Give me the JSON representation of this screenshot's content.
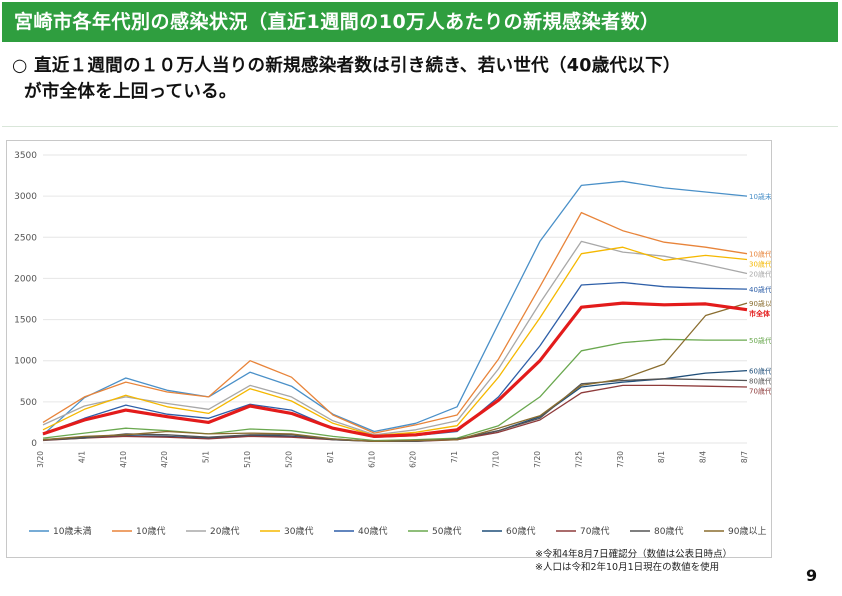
{
  "header": {
    "title": "宮崎市各年代別の感染状況（直近1週間の10万人あたりの新規感染者数）"
  },
  "summary": {
    "line1": "○ 直近１週間の１０万人当りの新規感染者数は引き続き、若い世代（40歳代以下）",
    "line2": "が市全体を上回っている。"
  },
  "notes": {
    "line1": "※令和4年8月7日確認分（数値は公表日時点）",
    "line2": "※人口は令和2年10月1日現在の数値を使用"
  },
  "page_number": "9",
  "chart_data": {
    "type": "line",
    "title": "",
    "xlabel": "",
    "ylabel": "",
    "ylim": [
      0,
      3500
    ],
    "yticks": [
      0,
      500,
      1000,
      1500,
      2000,
      2500,
      3000,
      3500
    ],
    "grid": true,
    "legend_position": "bottom",
    "x": [
      "3/20",
      "4/1",
      "4/10",
      "4/20",
      "5/1",
      "5/10",
      "5/20",
      "6/1",
      "6/10",
      "6/20",
      "7/1",
      "7/10",
      "7/20",
      "7/25",
      "7/30",
      "8/1",
      "8/4",
      "8/7"
    ],
    "series": [
      {
        "name": "10歳未満",
        "color": "#4a90c8",
        "end_label": "10歳未満",
        "values": [
          100,
          550,
          790,
          640,
          560,
          860,
          690,
          350,
          140,
          240,
          440,
          1450,
          2450,
          3130,
          3180,
          3100,
          3050,
          3000
        ]
      },
      {
        "name": "10歳代",
        "color": "#e8843a",
        "end_label": "10歳代",
        "values": [
          250,
          560,
          740,
          620,
          560,
          1000,
          800,
          340,
          120,
          220,
          340,
          1020,
          1900,
          2800,
          2580,
          2440,
          2380,
          2300
        ]
      },
      {
        "name": "20歳代",
        "color": "#a8a8a8",
        "end_label": "20歳代",
        "values": [
          220,
          450,
          560,
          480,
          410,
          700,
          560,
          270,
          100,
          160,
          270,
          900,
          1700,
          2450,
          2320,
          2270,
          2170,
          2060
        ]
      },
      {
        "name": "30歳代",
        "color": "#f5b800",
        "end_label": "30歳代",
        "values": [
          160,
          410,
          580,
          440,
          360,
          660,
          510,
          240,
          90,
          130,
          210,
          800,
          1520,
          2300,
          2380,
          2220,
          2280,
          2230
        ]
      },
      {
        "name": "40歳代",
        "color": "#2e5fa8",
        "end_label": "40歳代",
        "values": [
          110,
          300,
          460,
          350,
          300,
          470,
          400,
          180,
          70,
          90,
          140,
          560,
          1180,
          1920,
          1950,
          1900,
          1880,
          1870
        ]
      },
      {
        "name": "50歳代",
        "color": "#6aa84f",
        "end_label": "50歳代",
        "values": [
          60,
          120,
          180,
          150,
          110,
          170,
          150,
          80,
          30,
          40,
          60,
          210,
          560,
          1120,
          1220,
          1260,
          1250,
          1250
        ]
      },
      {
        "name": "60歳代",
        "color": "#1f4e79",
        "end_label": "60歳代",
        "values": [
          40,
          70,
          90,
          80,
          60,
          90,
          80,
          50,
          20,
          30,
          40,
          150,
          320,
          680,
          740,
          780,
          850,
          880
        ]
      },
      {
        "name": "70歳代",
        "color": "#8e3b3b",
        "end_label": "70歳代",
        "values": [
          30,
          60,
          80,
          70,
          50,
          80,
          70,
          40,
          20,
          20,
          40,
          130,
          280,
          610,
          700,
          700,
          690,
          680
        ]
      },
      {
        "name": "80歳代",
        "color": "#555555",
        "end_label": "80歳代",
        "values": [
          35,
          60,
          110,
          100,
          70,
          100,
          100,
          40,
          20,
          20,
          50,
          150,
          300,
          720,
          760,
          780,
          770,
          760
        ]
      },
      {
        "name": "90歳以上",
        "color": "#8a6d2f",
        "end_label": "90歳以上",
        "values": [
          40,
          80,
          100,
          140,
          110,
          120,
          110,
          50,
          20,
          30,
          40,
          180,
          330,
          700,
          780,
          960,
          1550,
          1700
        ]
      },
      {
        "name": "市全体",
        "color": "#e31b1b",
        "end_label": "市全体",
        "bold": true,
        "values": [
          110,
          280,
          400,
          320,
          250,
          450,
          360,
          180,
          80,
          100,
          160,
          520,
          1000,
          1650,
          1700,
          1680,
          1690,
          1620
        ]
      }
    ]
  }
}
